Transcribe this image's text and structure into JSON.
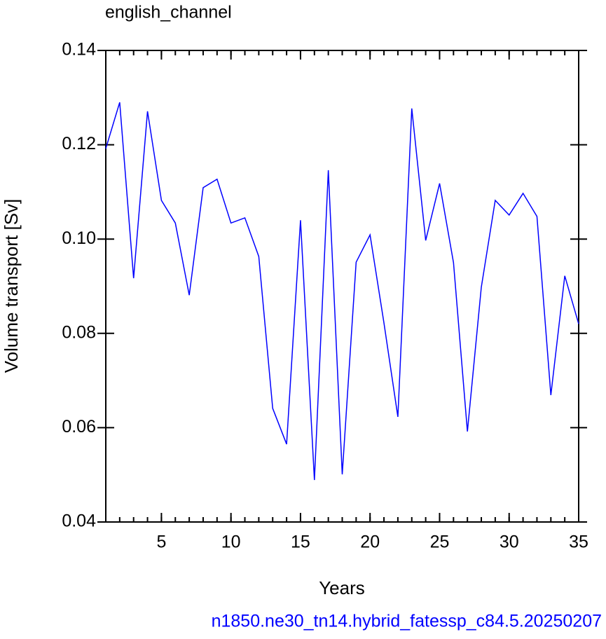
{
  "chart_data": {
    "type": "line",
    "title": "english_channel",
    "xlabel": "Years",
    "ylabel": "Volume transport [Sv]",
    "footer": "n1850.ne30_tn14.hybrid_fatessp_c84.5.20250207",
    "x": [
      1,
      2,
      3,
      4,
      5,
      6,
      7,
      8,
      9,
      10,
      11,
      12,
      13,
      14,
      15,
      16,
      17,
      18,
      19,
      20,
      21,
      22,
      23,
      24,
      25,
      26,
      27,
      28,
      29,
      30,
      31,
      32,
      33,
      34,
      35
    ],
    "series": [
      {
        "color": "#0000ff",
        "values": [
          0.1192,
          0.129,
          0.0917,
          0.1271,
          0.1082,
          0.1034,
          0.0881,
          0.1109,
          0.1127,
          0.1034,
          0.1045,
          0.0963,
          0.0641,
          0.0565,
          0.104,
          0.0489,
          0.1146,
          0.0501,
          0.0951,
          0.1009,
          0.0822,
          0.0623,
          0.1277,
          0.0997,
          0.1118,
          0.095,
          0.0592,
          0.0898,
          0.1082,
          0.1051,
          0.1097,
          0.1048,
          0.0669,
          0.0922,
          0.082
        ]
      }
    ],
    "xlim": [
      1,
      35
    ],
    "xticks": [
      5,
      10,
      15,
      20,
      25,
      30,
      35
    ],
    "ylim": [
      0.04,
      0.14
    ],
    "yticks": [
      {
        "value": 0.04,
        "label": "0.04"
      },
      {
        "value": 0.06,
        "label": "0.06"
      },
      {
        "value": 0.08,
        "label": "0.08"
      },
      {
        "value": 0.1,
        "label": "0.10"
      },
      {
        "value": 0.12,
        "label": "0.12"
      },
      {
        "value": 0.14,
        "label": "0.14"
      }
    ]
  }
}
